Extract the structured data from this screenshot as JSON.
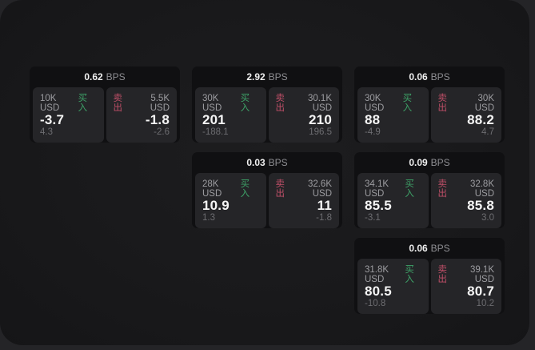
{
  "page": {
    "bps_suffix": "BPS"
  },
  "labels": {
    "buy": "买入",
    "sell": "卖出"
  },
  "colors": {
    "backdrop": "#242427",
    "page_bg": "#1a1a1c",
    "card_bg": "#101012",
    "panel_bg": "#252528",
    "value_text": "#f5f5f5",
    "muted_text": "#9d9da1",
    "dim_text": "#6d6d71",
    "buy_green": "#3ea268",
    "sell_red": "#c04f68"
  },
  "cards": [
    {
      "row": 1,
      "col": 1,
      "bps": "0.62",
      "buy": {
        "amount": "10K USD",
        "value": "-3.7",
        "sub": "4.3"
      },
      "sell": {
        "amount": "5.5K USD",
        "value": "-1.8",
        "sub": "-2.6"
      }
    },
    {
      "row": 1,
      "col": 2,
      "bps": "2.92",
      "buy": {
        "amount": "30K USD",
        "value": "201",
        "sub": "-188.1"
      },
      "sell": {
        "amount": "30.1K USD",
        "value": "210",
        "sub": "196.5"
      }
    },
    {
      "row": 1,
      "col": 3,
      "bps": "0.06",
      "buy": {
        "amount": "30K USD",
        "value": "88",
        "sub": "-4.9"
      },
      "sell": {
        "amount": "30K USD",
        "value": "88.2",
        "sub": "4.7"
      }
    },
    {
      "row": 2,
      "col": 2,
      "bps": "0.03",
      "buy": {
        "amount": "28K USD",
        "value": "10.9",
        "sub": "1.3"
      },
      "sell": {
        "amount": "32.6K USD",
        "value": "11",
        "sub": "-1.8"
      }
    },
    {
      "row": 2,
      "col": 3,
      "bps": "0.09",
      "buy": {
        "amount": "34.1K USD",
        "value": "85.5",
        "sub": "-3.1"
      },
      "sell": {
        "amount": "32.8K USD",
        "value": "85.8",
        "sub": "3.0"
      }
    },
    {
      "row": 3,
      "col": 3,
      "bps": "0.06",
      "buy": {
        "amount": "31.8K USD",
        "value": "80.5",
        "sub": "-10.8"
      },
      "sell": {
        "amount": "39.1K USD",
        "value": "80.7",
        "sub": "10.2"
      }
    }
  ]
}
